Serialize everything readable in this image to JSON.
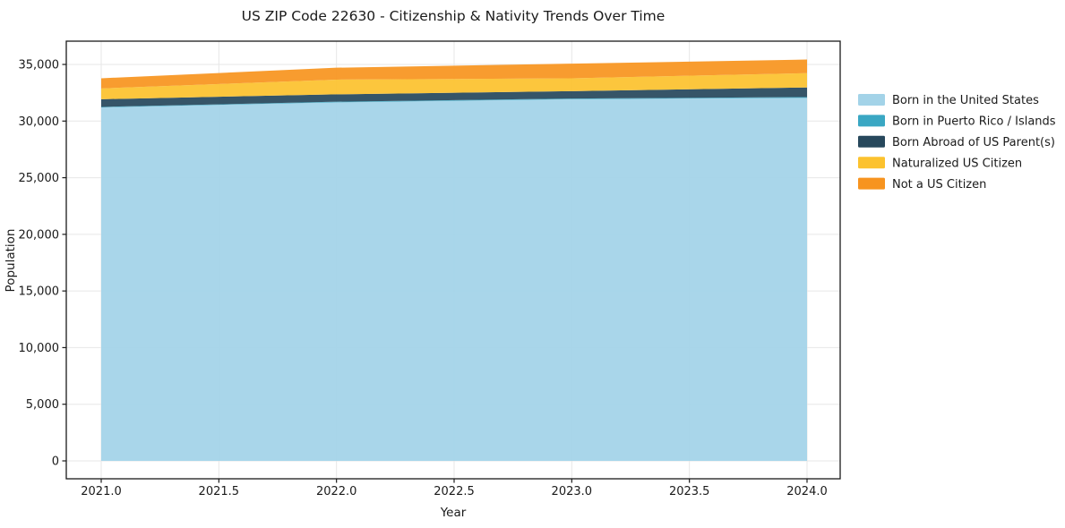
{
  "chart_data": {
    "type": "area",
    "stacked": true,
    "title": "US ZIP Code 22630 - Citizenship & Nativity Trends Over Time",
    "xlabel": "Year",
    "ylabel": "Population",
    "x": [
      2021,
      2022,
      2023,
      2024
    ],
    "series": [
      {
        "name": "Born in the United States",
        "color": "#a3d3e8",
        "values": [
          31200,
          31650,
          31930,
          32050
        ]
      },
      {
        "name": "Born in Puerto Rico / Islands",
        "color": "#3aa7c3",
        "values": [
          50,
          60,
          60,
          70
        ]
      },
      {
        "name": "Born Abroad of US Parent(s)",
        "color": "#27485c",
        "values": [
          680,
          650,
          650,
          850
        ]
      },
      {
        "name": "Naturalized US Citizen",
        "color": "#fcc22e",
        "values": [
          950,
          1300,
          1140,
          1260
        ]
      },
      {
        "name": "Not a US Citizen",
        "color": "#f7941f",
        "values": [
          900,
          1050,
          1290,
          1200
        ]
      }
    ],
    "totals": [
      33780,
      34710,
      35070,
      35430
    ],
    "xticks": [
      2021.0,
      2021.5,
      2022.0,
      2022.5,
      2023.0,
      2023.5,
      2024.0
    ],
    "xtick_labels": [
      "2021.0",
      "2021.5",
      "2022.0",
      "2022.5",
      "2023.0",
      "2023.5",
      "2024.0"
    ],
    "yticks": [
      0,
      5000,
      10000,
      15000,
      20000,
      25000,
      30000,
      35000
    ],
    "ytick_labels": [
      "0",
      "5,000",
      "10,000",
      "15,000",
      "20,000",
      "25,000",
      "30,000",
      "35,000"
    ],
    "xlim": [
      2020.85,
      2024.14
    ],
    "ylim": [
      -1580,
      37050
    ],
    "grid": true,
    "legend_position": "right of plot, no border"
  }
}
